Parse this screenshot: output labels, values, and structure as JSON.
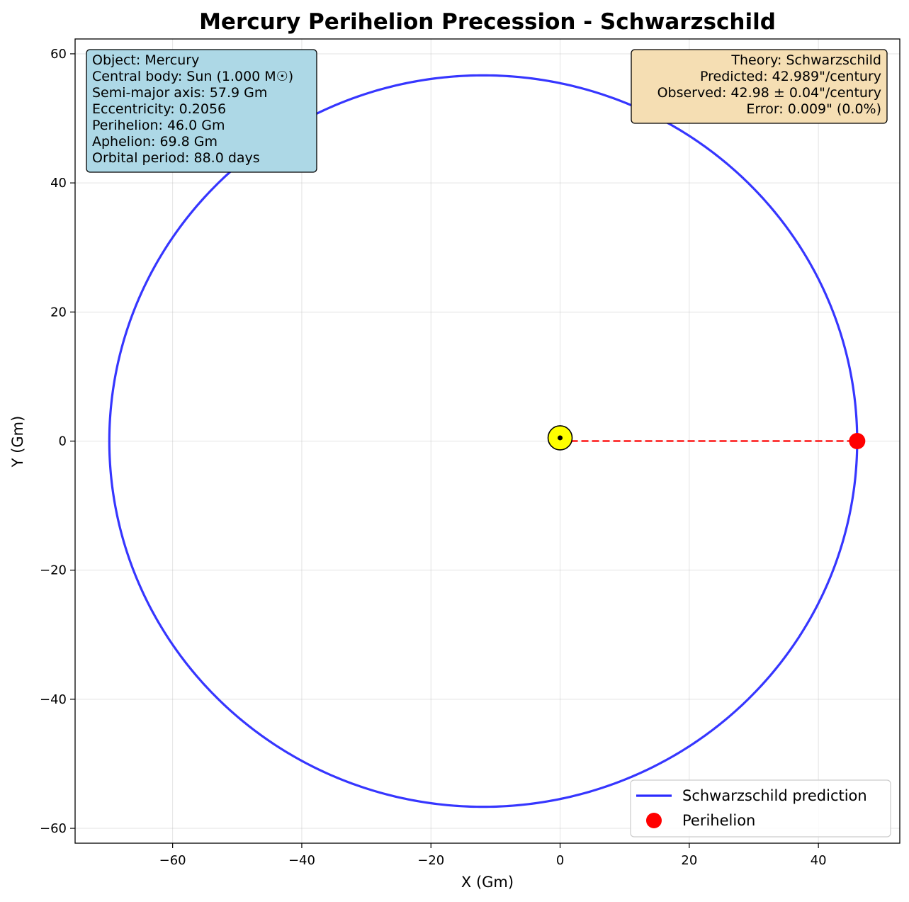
{
  "chart_data": {
    "type": "line",
    "title": "Mercury Perihelion Precession - Schwarzschild",
    "xlabel": "X (Gm)",
    "ylabel": "Y (Gm)",
    "xlim": [
      -75.1,
      52.6
    ],
    "ylim": [
      -62.3,
      62.3
    ],
    "xticks": [
      -60,
      -40,
      -20,
      0,
      20,
      40
    ],
    "yticks": [
      -60,
      -40,
      -20,
      0,
      20,
      40,
      60
    ],
    "xtick_labels": [
      "−60",
      "−40",
      "−20",
      "0",
      "20",
      "40"
    ],
    "ytick_labels": [
      "−60",
      "−40",
      "−20",
      "0",
      "20",
      "40",
      "60"
    ],
    "grid": true,
    "legend_position": "lower-right",
    "series": [
      {
        "name": "Schwarzschild prediction",
        "kind": "line",
        "color": "#2b2bff",
        "orbit": {
          "semi_major_axis_gm": 57.9,
          "eccentricity": 0.2056,
          "perihelion_gm": 46.0,
          "aphelion_gm": 69.8,
          "focus_x": 0,
          "focus_y": 0
        }
      },
      {
        "name": "Perihelion",
        "kind": "marker",
        "color": "#ff0000",
        "x": [
          46.0
        ],
        "y": [
          0.0
        ]
      }
    ],
    "perihelion_line": {
      "x": [
        0,
        46.0
      ],
      "y": [
        0,
        0
      ],
      "color": "#ff0000",
      "style": "dashed"
    },
    "central_body": {
      "x": 0,
      "y": 0.5,
      "fill_color": "#ffff00",
      "outline_color": "#000000"
    },
    "info_box": {
      "position": "top-left",
      "background": "#add8e6",
      "lines": [
        "Object: Mercury",
        "Central body: Sun (1.000 M☉)",
        "Semi-major axis: 57.9 Gm",
        "Eccentricity: 0.2056",
        "Perihelion: 46.0 Gm",
        "Aphelion: 69.8 Gm",
        "Orbital period: 88.0 days"
      ]
    },
    "theory_box": {
      "position": "top-right",
      "background": "#f5deb3",
      "lines": [
        "Theory: Schwarzschild",
        "Predicted: 42.989\"/century",
        "Observed: 42.98 ± 0.04\"/century",
        "Error: 0.009\" (0.0%)"
      ]
    }
  }
}
